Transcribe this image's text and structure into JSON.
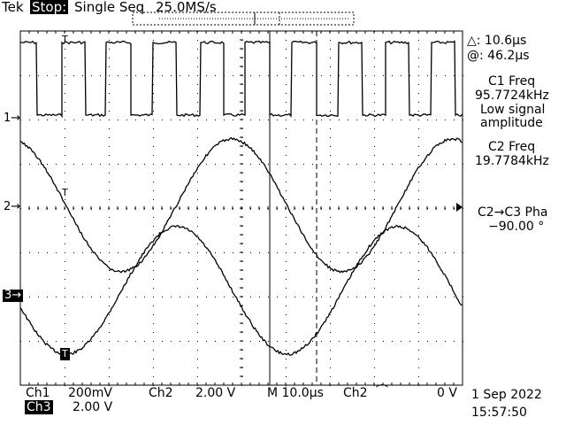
{
  "header": {
    "brand": "Tek",
    "run_state": "Stop:",
    "acq_mode": "Single Seq",
    "sample_rate": "25.0MS/s"
  },
  "channel_markers": {
    "ch1": "1→",
    "ch2": "2→",
    "ch3": "3→",
    "ch3_trigger": "T",
    "ch1_trigger": "T",
    "ch2_trigger": "T",
    "trig_level_arrow": "◀"
  },
  "readouts": {
    "cursor_delta": "△: 10.6μs",
    "cursor_at": "@: 46.2μs",
    "c1_freq_label": "C1 Freq",
    "c1_freq_value": "95.7724kHz",
    "c1_note_1": "Low signal",
    "c1_note_2": "amplitude",
    "c2_freq_label": "C2 Freq",
    "c2_freq_value": "19.7784kHz",
    "phase_label": "C2→C3 Pha",
    "phase_value": "−90.00 °"
  },
  "footer": {
    "ch1_label": "Ch1",
    "ch1_scale": "200mV",
    "ch2_label": "Ch2",
    "ch2_scale": "2.00 V",
    "ch3_label": "Ch3",
    "ch3_scale": "2.00 V",
    "timebase": "M 10.0μs",
    "trig_source": "Ch2",
    "trig_slope": "⌒",
    "trig_level": "0 V",
    "date": "1 Sep 2022",
    "time": "15:57:50"
  },
  "waveforms": {
    "ch1": {
      "type": "square",
      "freq_khz": 95.7724,
      "level": "low signal amplitude"
    },
    "ch2": {
      "type": "sine",
      "freq_khz": 19.7784
    },
    "ch3": {
      "type": "sine",
      "freq_khz": 19.7784,
      "phase_deg": -90.0
    }
  },
  "colors": {
    "trace": "#000000",
    "background": "#ffffff"
  }
}
